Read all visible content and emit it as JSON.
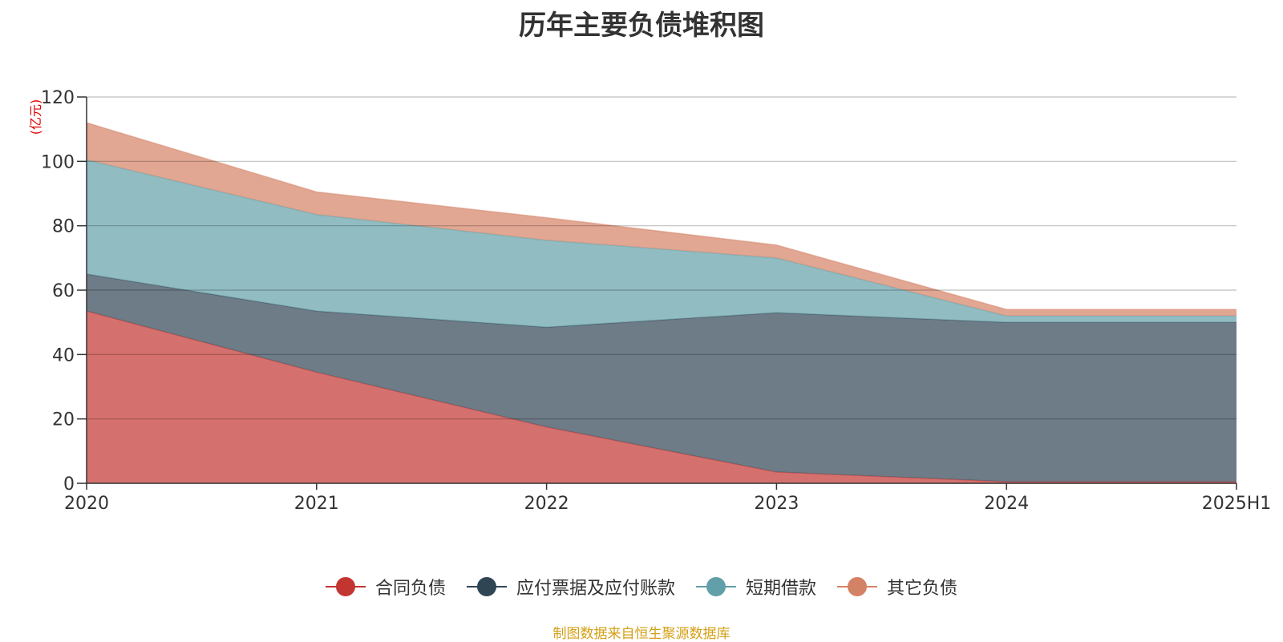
{
  "chart_data": {
    "type": "area",
    "stacked": true,
    "title": "历年主要负债堆积图",
    "yunit": "(亿元)",
    "ylim": [
      0,
      120
    ],
    "yticks": [
      0,
      20,
      40,
      60,
      80,
      100,
      120
    ],
    "categories": [
      "2020",
      "2021",
      "2022",
      "2023",
      "2024",
      "2025H1"
    ],
    "series": [
      {
        "name": "合同负债",
        "color": "#c23531",
        "values": [
          53.5,
          34.5,
          17.5,
          3.5,
          0.5,
          0.5
        ]
      },
      {
        "name": "应付票据及应付账款",
        "color": "#2f4554",
        "values": [
          11.5,
          19.0,
          31.0,
          49.5,
          49.5,
          49.5
        ]
      },
      {
        "name": "短期借款",
        "color": "#61a0a8",
        "values": [
          35.5,
          30.0,
          27.0,
          17.0,
          2.0,
          2.0
        ]
      },
      {
        "name": "其它负债",
        "color": "#d48265",
        "values": [
          11.5,
          7.0,
          7.0,
          4.0,
          2.0,
          2.0
        ]
      }
    ],
    "grid": true,
    "legend_position": "bottom"
  },
  "source_note": "制图数据来自恒生聚源数据库"
}
